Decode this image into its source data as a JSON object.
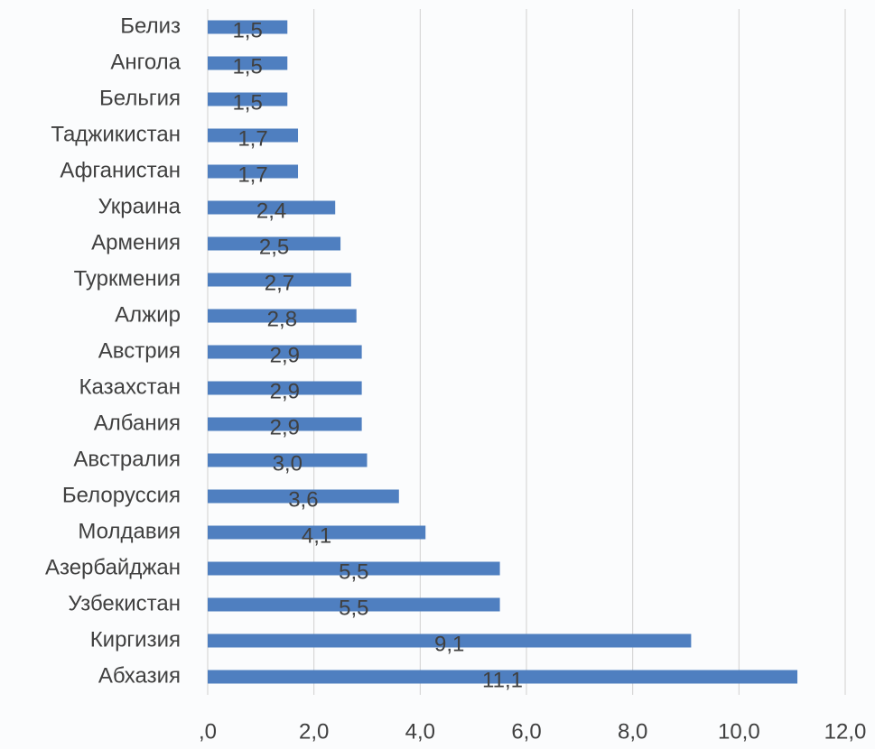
{
  "chart_data": {
    "type": "bar",
    "orientation": "horizontal",
    "color": "#4f7fc0",
    "grid": true,
    "categories": [
      "Белиз",
      "Ангола",
      "Бельгия",
      "Таджикистан",
      "Афганистан",
      "Украина",
      "Армения",
      "Туркмения",
      "Алжир",
      "Австрия",
      "Казахстан",
      "Албания",
      "Австралия",
      "Белоруссия",
      "Молдавия",
      "Азербайджан",
      "Узбекистан",
      "Киргизия",
      "Абхазия"
    ],
    "values": [
      1.5,
      1.5,
      1.5,
      1.7,
      1.7,
      2.4,
      2.5,
      2.7,
      2.8,
      2.9,
      2.9,
      2.9,
      3.0,
      3.6,
      4.1,
      5.5,
      5.5,
      9.1,
      11.1
    ],
    "value_labels": [
      "1,5",
      "1,5",
      "1,5",
      "1,7",
      "1,7",
      "2,4",
      "2,5",
      "2,7",
      "2,8",
      "2,9",
      "2,9",
      "2,9",
      "3,0",
      "3,6",
      "4,1",
      "5,5",
      "5,5",
      "9,1",
      "11,1"
    ],
    "xlim": [
      0,
      12
    ],
    "xticks": [
      {
        "value": 0,
        "label": ",0"
      },
      {
        "value": 2,
        "label": "2,0"
      },
      {
        "value": 4,
        "label": "4,0"
      },
      {
        "value": 6,
        "label": "6,0"
      },
      {
        "value": 8,
        "label": "8,0"
      },
      {
        "value": 10,
        "label": "10,0"
      },
      {
        "value": 12,
        "label": "12,0"
      }
    ]
  }
}
